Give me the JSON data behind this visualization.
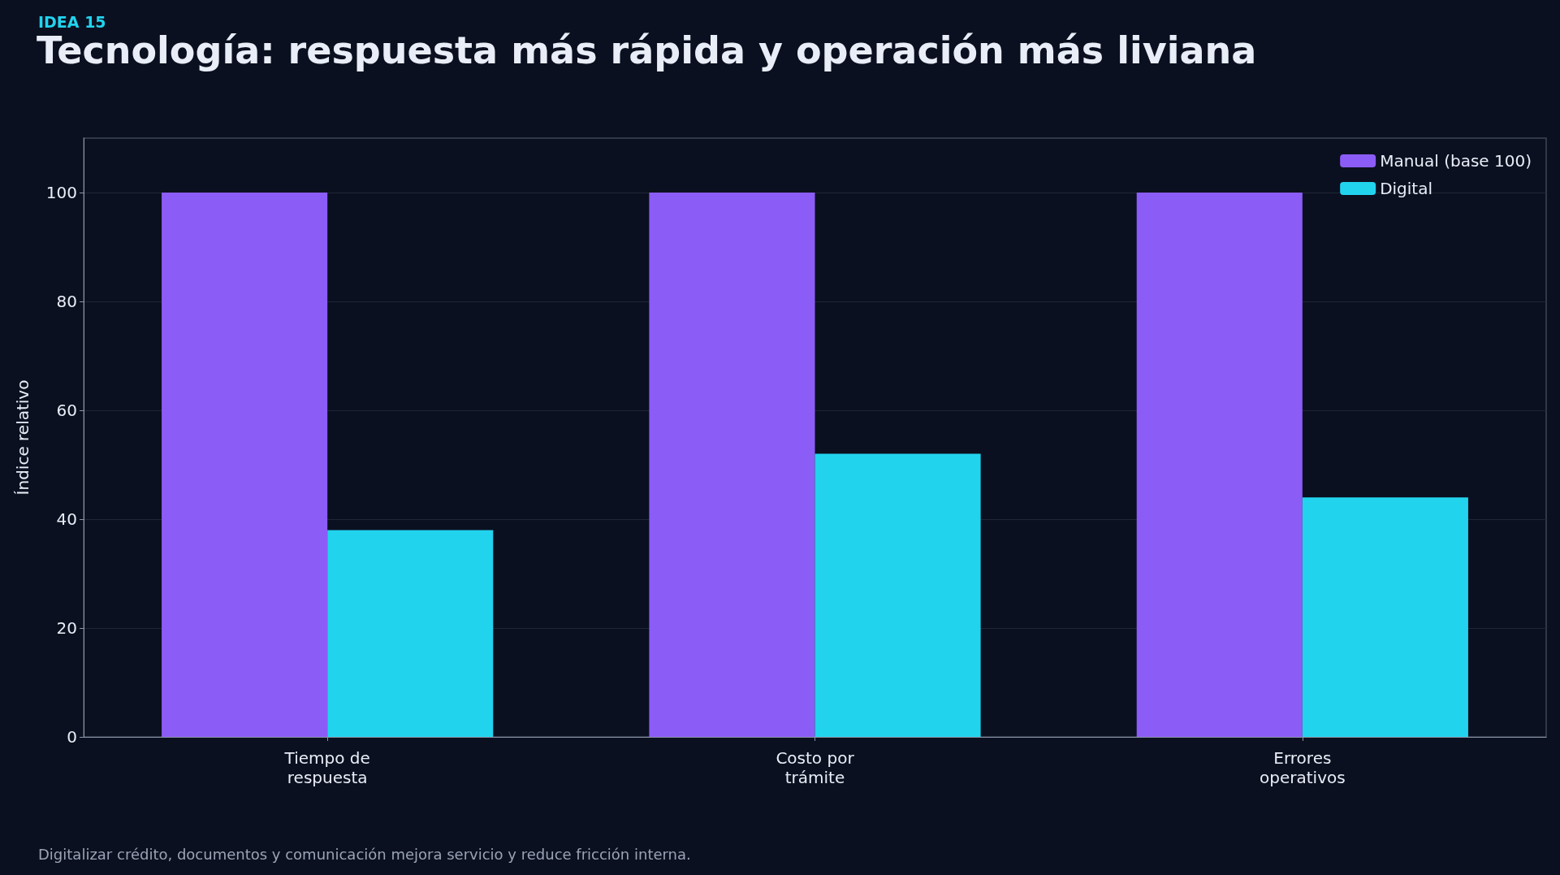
{
  "chart_data": {
    "type": "bar",
    "subtitle": "IDEA 15",
    "title": "Tecnología: respuesta más rápida y operación más liviana",
    "ylabel": "Índice relativo",
    "categories": [
      "Tiempo de\nrespuesta",
      "Costo por\ntrámite",
      "Errores\noperativos"
    ],
    "series": [
      {
        "name": "Manual (base 100)",
        "color": "#8b5cf6",
        "values": [
          100,
          100,
          100
        ]
      },
      {
        "name": "Digital",
        "color": "#22d3ee",
        "values": [
          38,
          52,
          44
        ]
      }
    ],
    "ylim": [
      0,
      110
    ],
    "yticks": [
      0,
      20,
      40,
      60,
      80,
      100
    ],
    "grid": "y",
    "legend": "top right",
    "annotations": [
      "Digitalizar crédito, documentos y comunicación mejora servicio y reduce fricción interna."
    ]
  }
}
